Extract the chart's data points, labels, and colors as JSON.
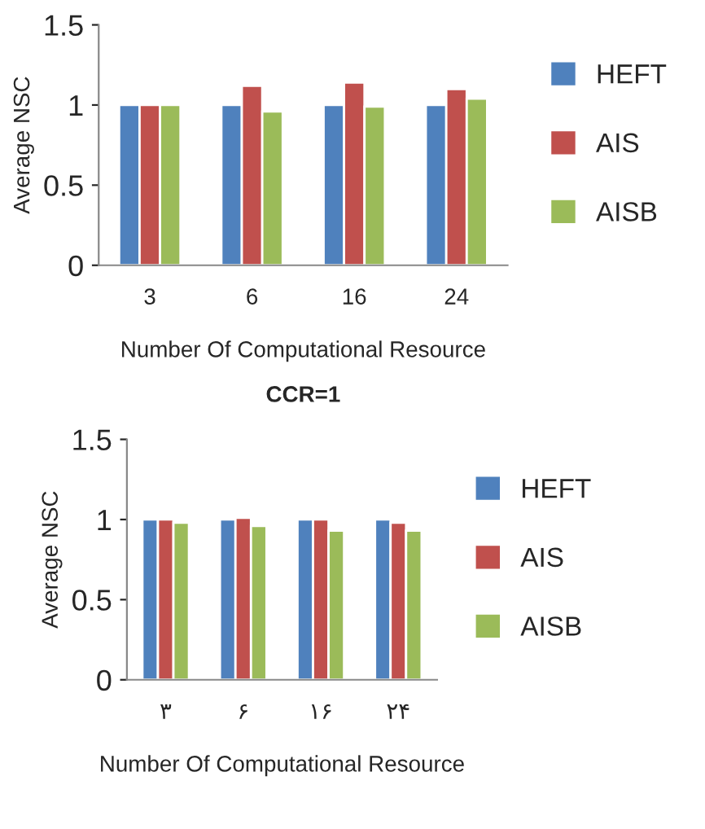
{
  "chart_data": [
    {
      "type": "bar",
      "categories": [
        "3",
        "6",
        "16",
        "24"
      ],
      "ylabel": "Average NSC",
      "xlabel": "Number Of Computational Resource",
      "annotations": [
        "CCR=1"
      ],
      "ylim": [
        0,
        1.5
      ],
      "yticks": [
        0,
        0.5,
        1,
        1.5
      ],
      "legend": "right",
      "grid": false,
      "series": [
        {
          "name": "HEFT",
          "color": "#4f81bd",
          "values": [
            1,
            1,
            1,
            1
          ]
        },
        {
          "name": "AIS",
          "color": "#c0504d",
          "values": [
            1,
            1.12,
            1.14,
            1.1
          ]
        },
        {
          "name": "AISB",
          "color": "#9bbb59",
          "values": [
            1,
            0.96,
            0.99,
            1.04
          ]
        }
      ]
    },
    {
      "type": "bar",
      "categories": [
        "۳",
        "۶",
        "۱۶",
        "۲۴"
      ],
      "ylabel": "Average NSC",
      "xlabel": "Number Of Computational Resource",
      "ylim": [
        0,
        1.5
      ],
      "yticks": [
        0,
        0.5,
        1,
        1.5
      ],
      "legend": "right",
      "grid": false,
      "series": [
        {
          "name": "HEFT",
          "color": "#4f81bd",
          "values": [
            1,
            1,
            1,
            1
          ]
        },
        {
          "name": "AIS",
          "color": "#c0504d",
          "values": [
            1,
            1.01,
            1,
            0.98
          ]
        },
        {
          "name": "AISB",
          "color": "#9bbb59",
          "values": [
            0.98,
            0.96,
            0.93,
            0.93
          ]
        }
      ]
    }
  ]
}
